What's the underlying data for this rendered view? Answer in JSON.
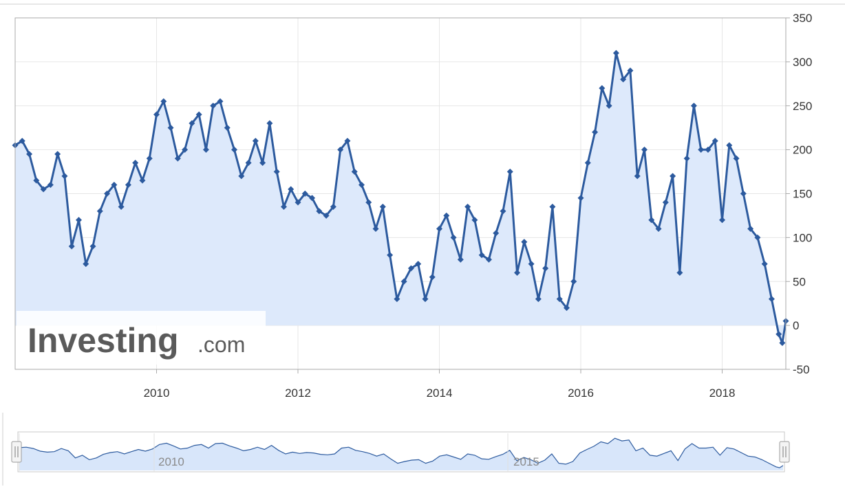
{
  "watermark": {
    "brand": "Investing",
    "suffix": ".com"
  },
  "colors": {
    "line": "#2c5a9e",
    "area": "#dde9fb",
    "grid": "#e6e6e6",
    "axis": "#aaaaaa",
    "navigator_area": "#d8e6fa",
    "navigator_line": "#2c5a9e"
  },
  "navigator": {
    "labels": [
      "2010",
      "2015"
    ]
  },
  "chart_data": {
    "type": "area",
    "title": "",
    "xlabel": "",
    "ylabel": "",
    "x_ticks": [
      "2010",
      "2012",
      "2014",
      "2016",
      "2018"
    ],
    "y_ticks": [
      350,
      300,
      250,
      200,
      150,
      100,
      50,
      0,
      -50
    ],
    "ylim": [
      -50,
      350
    ],
    "xlim": [
      2008.0,
      2018.9
    ],
    "grid": true,
    "legend": "none",
    "y_axis_side": "right",
    "series": [
      {
        "marker": "diamond",
        "x": [
          2008.0,
          2008.1,
          2008.2,
          2008.3,
          2008.4,
          2008.5,
          2008.6,
          2008.7,
          2008.8,
          2008.9,
          2009.0,
          2009.1,
          2009.2,
          2009.3,
          2009.4,
          2009.5,
          2009.6,
          2009.7,
          2009.8,
          2009.9,
          2010.0,
          2010.1,
          2010.2,
          2010.3,
          2010.4,
          2010.5,
          2010.6,
          2010.7,
          2010.8,
          2010.9,
          2011.0,
          2011.1,
          2011.2,
          2011.3,
          2011.4,
          2011.5,
          2011.6,
          2011.7,
          2011.8,
          2011.9,
          2012.0,
          2012.1,
          2012.2,
          2012.3,
          2012.4,
          2012.5,
          2012.6,
          2012.7,
          2012.8,
          2012.9,
          2013.0,
          2013.1,
          2013.2,
          2013.3,
          2013.4,
          2013.5,
          2013.6,
          2013.7,
          2013.8,
          2013.9,
          2014.0,
          2014.1,
          2014.2,
          2014.3,
          2014.4,
          2014.5,
          2014.6,
          2014.7,
          2014.8,
          2014.9,
          2015.0,
          2015.1,
          2015.2,
          2015.3,
          2015.4,
          2015.5,
          2015.6,
          2015.7,
          2015.8,
          2015.9,
          2016.0,
          2016.1,
          2016.2,
          2016.3,
          2016.4,
          2016.5,
          2016.6,
          2016.7,
          2016.8,
          2016.9,
          2017.0,
          2017.1,
          2017.2,
          2017.3,
          2017.4,
          2017.5,
          2017.6,
          2017.7,
          2017.8,
          2017.9,
          2018.0,
          2018.1,
          2018.2,
          2018.3,
          2018.4,
          2018.5,
          2018.6,
          2018.7,
          2018.8,
          2018.85,
          2018.9
        ],
        "y": [
          205,
          210,
          195,
          165,
          155,
          160,
          195,
          170,
          90,
          120,
          70,
          90,
          130,
          150,
          160,
          135,
          160,
          185,
          165,
          190,
          240,
          255,
          225,
          190,
          200,
          230,
          240,
          200,
          250,
          255,
          225,
          200,
          170,
          185,
          210,
          185,
          230,
          175,
          135,
          155,
          140,
          150,
          145,
          130,
          125,
          135,
          200,
          210,
          175,
          160,
          140,
          110,
          135,
          80,
          30,
          50,
          65,
          70,
          30,
          55,
          110,
          125,
          100,
          75,
          135,
          120,
          80,
          75,
          105,
          130,
          175,
          60,
          95,
          70,
          30,
          65,
          135,
          30,
          20,
          50,
          145,
          185,
          220,
          270,
          250,
          310,
          280,
          290,
          170,
          200,
          120,
          110,
          140,
          170,
          60,
          190,
          250,
          200,
          200,
          210,
          120,
          205,
          190,
          150,
          110,
          100,
          70,
          30,
          -10,
          -20,
          5
        ]
      }
    ]
  }
}
